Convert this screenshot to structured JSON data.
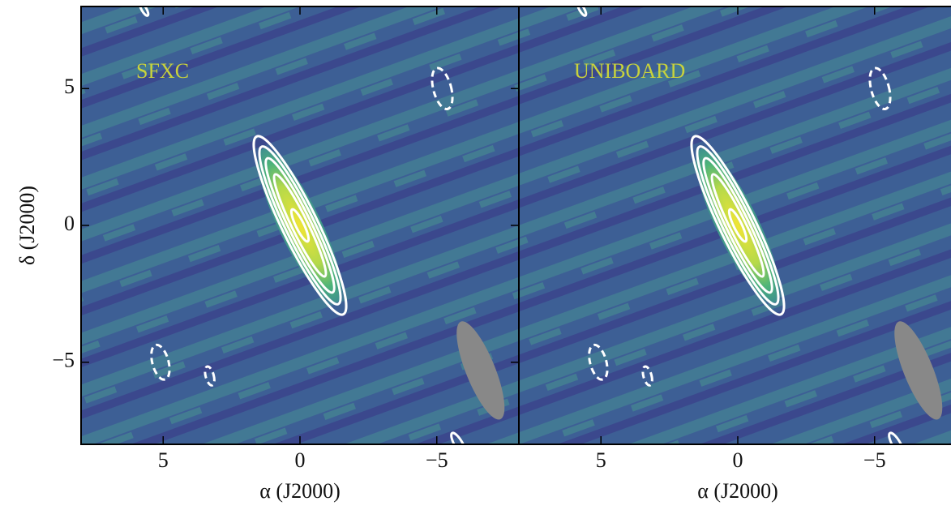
{
  "chart_data": [
    {
      "type": "image",
      "title": "SFXC",
      "xlabel": "α (J2000)",
      "ylabel": "δ (J2000)",
      "xlim": [
        8,
        -8
      ],
      "ylim": [
        -8,
        8
      ],
      "xticks": [
        5,
        0,
        {
          "value": -5,
          "label": "−5"
        }
      ],
      "yticks": [
        {
          "value": -5,
          "label": "−5"
        },
        0,
        5
      ]
    },
    {
      "type": "image",
      "title": "UNIBOARD",
      "xlabel": "α (J2000)",
      "xlim": [
        8,
        -8
      ],
      "ylim": [
        -8,
        8
      ],
      "xticks": [
        5,
        0,
        {
          "value": -5,
          "label": "−5"
        }
      ]
    }
  ]
}
